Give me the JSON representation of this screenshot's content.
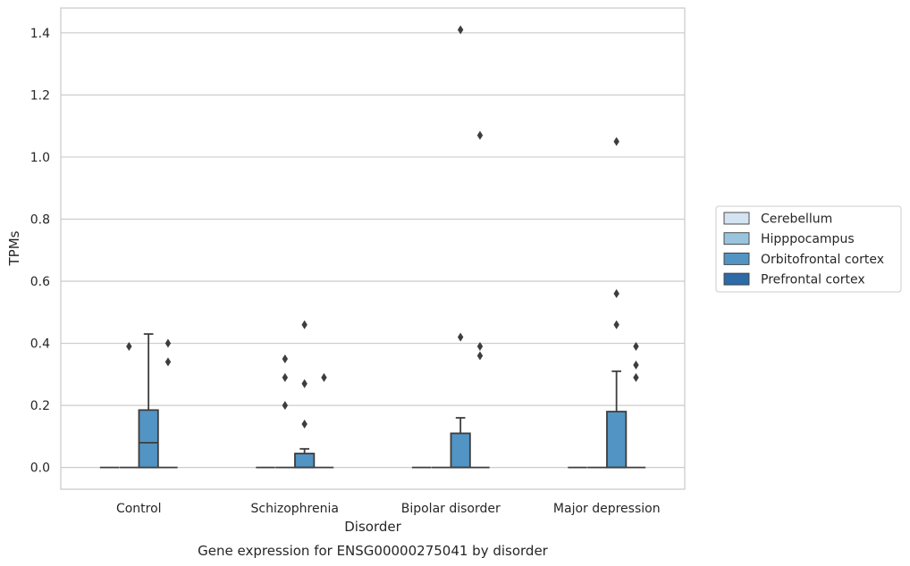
{
  "chart_data": {
    "type": "box",
    "xlabel": "Disorder",
    "ylabel": "TPMs",
    "caption": "Gene expression for ENSG00000275041 by disorder",
    "ylim": [
      -0.07,
      1.48
    ],
    "yticks": [
      "0.0",
      "0.2",
      "0.4",
      "0.6",
      "0.8",
      "1.0",
      "1.2",
      "1.4"
    ],
    "ytick_values": [
      0,
      0.2,
      0.4,
      0.6,
      0.8,
      1.0,
      1.2,
      1.4
    ],
    "grid": "horizontal",
    "legend_position": "right",
    "categories": [
      "Control",
      "Schizophrenia",
      "Bipolar disorder",
      "Major depression"
    ],
    "series": [
      {
        "name": "Cerebellum",
        "color": "#d4e3f1",
        "boxes": [
          {
            "q1": 0,
            "median": 0,
            "q3": 0,
            "whisker_low": 0,
            "whisker_high": 0,
            "outliers": []
          },
          {
            "q1": 0,
            "median": 0,
            "q3": 0,
            "whisker_low": 0,
            "whisker_high": 0,
            "outliers": []
          },
          {
            "q1": 0,
            "median": 0,
            "q3": 0,
            "whisker_low": 0,
            "whisker_high": 0,
            "outliers": []
          },
          {
            "q1": 0,
            "median": 0,
            "q3": 0,
            "whisker_low": 0,
            "whisker_high": 0,
            "outliers": []
          }
        ]
      },
      {
        "name": "Hipppocampus",
        "color": "#9ac4dd",
        "boxes": [
          {
            "q1": 0,
            "median": 0,
            "q3": 0,
            "whisker_low": 0,
            "whisker_high": 0,
            "outliers": [
              0.39
            ]
          },
          {
            "q1": 0,
            "median": 0,
            "q3": 0,
            "whisker_low": 0,
            "whisker_high": 0,
            "outliers": [
              0.35,
              0.29,
              0.2
            ]
          },
          {
            "q1": 0,
            "median": 0,
            "q3": 0,
            "whisker_low": 0,
            "whisker_high": 0,
            "outliers": []
          },
          {
            "q1": 0,
            "median": 0,
            "q3": 0,
            "whisker_low": 0,
            "whisker_high": 0,
            "outliers": []
          }
        ]
      },
      {
        "name": "Orbitofrontal cortex",
        "color": "#5294c4",
        "boxes": [
          {
            "q1": 0,
            "median": 0.08,
            "q3": 0.185,
            "whisker_low": 0,
            "whisker_high": 0.43,
            "outliers": []
          },
          {
            "q1": 0,
            "median": 0,
            "q3": 0.045,
            "whisker_low": 0,
            "whisker_high": 0.06,
            "outliers": [
              0.46,
              0.27,
              0.14
            ]
          },
          {
            "q1": 0,
            "median": 0,
            "q3": 0.11,
            "whisker_low": 0,
            "whisker_high": 0.16,
            "outliers": [
              0.42,
              1.41
            ]
          },
          {
            "q1": 0,
            "median": 0,
            "q3": 0.18,
            "whisker_low": 0,
            "whisker_high": 0.31,
            "outliers": [
              0.46,
              0.56,
              1.05
            ]
          }
        ]
      },
      {
        "name": "Prefrontal cortex",
        "color": "#2c6aa8",
        "boxes": [
          {
            "q1": 0,
            "median": 0,
            "q3": 0,
            "whisker_low": 0,
            "whisker_high": 0,
            "outliers": [
              0.4,
              0.34
            ]
          },
          {
            "q1": 0,
            "median": 0,
            "q3": 0,
            "whisker_low": 0,
            "whisker_high": 0,
            "outliers": [
              0.29
            ]
          },
          {
            "q1": 0,
            "median": 0,
            "q3": 0,
            "whisker_low": 0,
            "whisker_high": 0,
            "outliers": [
              1.07,
              0.39,
              0.36
            ]
          },
          {
            "q1": 0,
            "median": 0,
            "q3": 0,
            "whisker_low": 0,
            "whisker_high": 0,
            "outliers": [
              0.39,
              0.33,
              0.29
            ]
          }
        ]
      }
    ]
  }
}
